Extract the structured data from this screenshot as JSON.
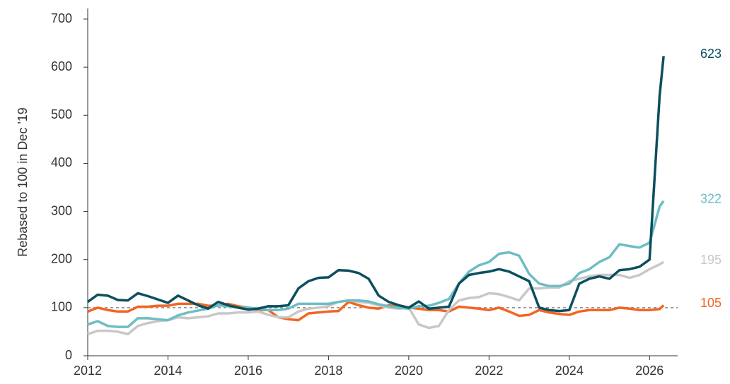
{
  "chart_data": {
    "type": "line",
    "ylabel": "Rebased to 100 in Dec '19",
    "x": [
      2012,
      2012.25,
      2012.5,
      2012.75,
      2013,
      2013.25,
      2013.5,
      2013.75,
      2014,
      2014.25,
      2014.5,
      2014.75,
      2015,
      2015.25,
      2015.5,
      2015.75,
      2016,
      2016.25,
      2016.5,
      2016.75,
      2017,
      2017.25,
      2017.5,
      2017.75,
      2018,
      2018.25,
      2018.5,
      2018.75,
      2019,
      2019.25,
      2019.5,
      2019.75,
      2020,
      2020.25,
      2020.5,
      2020.75,
      2021,
      2021.25,
      2021.5,
      2021.75,
      2022,
      2022.25,
      2022.5,
      2022.75,
      2023,
      2023.25,
      2023.5,
      2023.75,
      2024,
      2024.25,
      2024.5,
      2024.75,
      2025,
      2025.25,
      2025.5,
      2025.75,
      2026,
      2026.25,
      2026.35
    ],
    "series": [
      {
        "color": "#0b4f5e",
        "values": [
          112,
          127,
          125,
          116,
          115,
          130,
          124,
          117,
          110,
          125,
          115,
          105,
          98,
          112,
          105,
          100,
          96,
          98,
          103,
          103,
          105,
          140,
          155,
          162,
          163,
          178,
          177,
          172,
          160,
          125,
          112,
          105,
          100,
          113,
          98,
          100,
          102,
          150,
          168,
          172,
          175,
          180,
          175,
          165,
          155,
          100,
          95,
          93,
          95,
          150,
          160,
          165,
          160,
          178,
          180,
          185,
          200,
          540,
          623
        ]
      },
      {
        "color": "#6dbdc4",
        "values": [
          65,
          72,
          62,
          60,
          60,
          78,
          78,
          76,
          74,
          84,
          90,
          94,
          98,
          105,
          103,
          100,
          100,
          98,
          95,
          95,
          98,
          108,
          108,
          108,
          108,
          112,
          115,
          115,
          113,
          107,
          103,
          100,
          98,
          103,
          104,
          110,
          118,
          150,
          175,
          188,
          195,
          212,
          215,
          208,
          170,
          150,
          145,
          145,
          150,
          172,
          180,
          195,
          205,
          232,
          228,
          225,
          235,
          310,
          322
        ]
      },
      {
        "color": "#c8c8c8",
        "values": [
          45,
          52,
          52,
          50,
          45,
          62,
          68,
          72,
          74,
          80,
          78,
          80,
          82,
          88,
          88,
          90,
          90,
          92,
          85,
          80,
          80,
          92,
          98,
          100,
          103,
          112,
          115,
          112,
          110,
          105,
          100,
          98,
          100,
          65,
          58,
          62,
          95,
          115,
          120,
          122,
          130,
          128,
          122,
          115,
          140,
          140,
          142,
          142,
          155,
          160,
          165,
          168,
          168,
          168,
          162,
          168,
          180,
          190,
          195
        ]
      },
      {
        "color": "#f26522",
        "values": [
          92,
          100,
          95,
          92,
          92,
          102,
          102,
          104,
          104,
          108,
          108,
          108,
          104,
          104,
          108,
          103,
          100,
          95,
          95,
          80,
          76,
          74,
          88,
          90,
          92,
          93,
          112,
          105,
          100,
          98,
          105,
          103,
          100,
          98,
          95,
          95,
          92,
          102,
          100,
          98,
          95,
          100,
          92,
          83,
          85,
          95,
          90,
          87,
          85,
          92,
          95,
          95,
          95,
          100,
          98,
          95,
          95,
          97,
          105
        ]
      }
    ],
    "reference_line": 100,
    "xlim": [
      2012,
      2026.7
    ],
    "xticks": [
      2012,
      2014,
      2016,
      2018,
      2020,
      2022,
      2024,
      2026
    ],
    "ylim": [
      0,
      700
    ],
    "yticks": [
      0,
      100,
      200,
      300,
      400,
      500,
      600,
      700
    ],
    "grid": false
  }
}
